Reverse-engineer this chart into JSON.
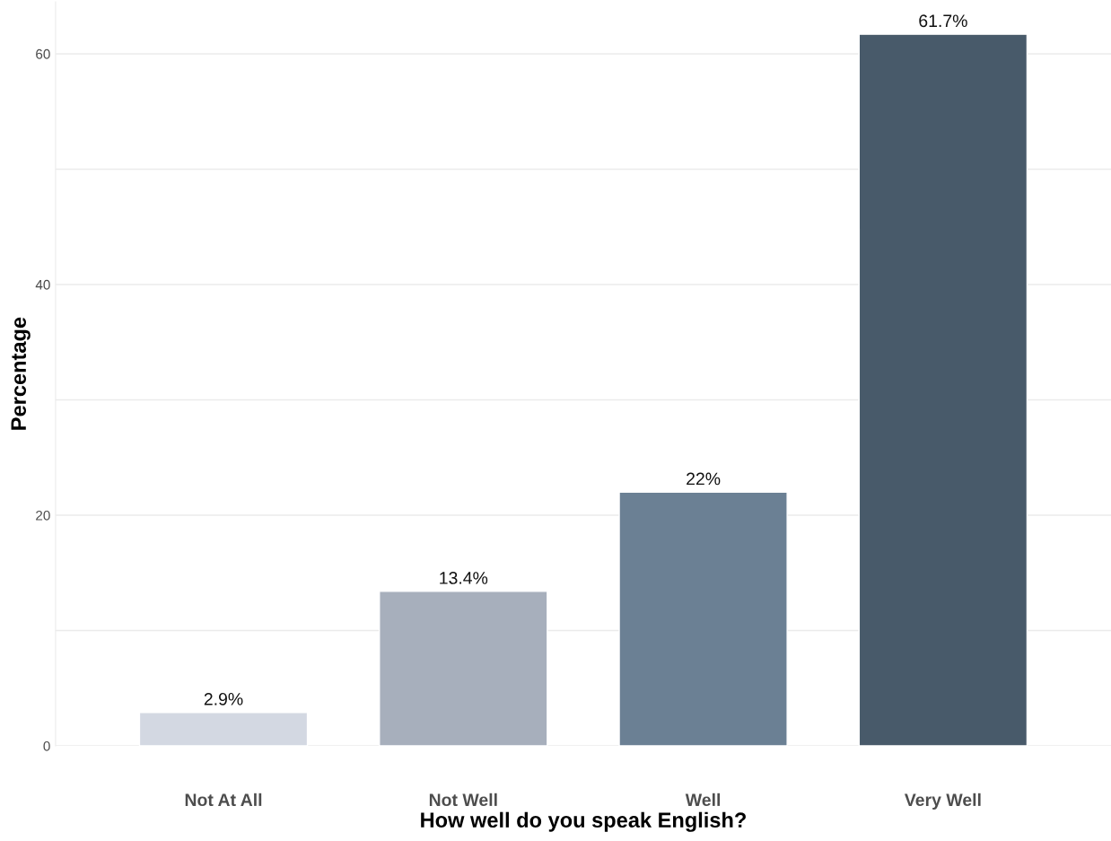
{
  "chart_data": {
    "type": "bar",
    "xlabel": "How well do you speak English?",
    "ylabel": "Percentage",
    "categories": [
      "Not At All",
      "Not Well",
      "Well",
      "Very Well"
    ],
    "values": [
      2.9,
      13.4,
      22,
      61.7
    ],
    "colors": [
      "#d3d8e2",
      "#a7afbc",
      "#6b8094",
      "#485a6a"
    ],
    "value_labels": [
      "2.9%",
      "13.4%",
      "22%",
      "61.7%"
    ],
    "ylim": [
      0,
      64.5
    ],
    "yticks": [
      0,
      {
        "value": 10,
        "label": null
      },
      20,
      {
        "value": 30,
        "label": null
      },
      40,
      {
        "value": 50,
        "label": null
      },
      60
    ],
    "grid": "y"
  }
}
